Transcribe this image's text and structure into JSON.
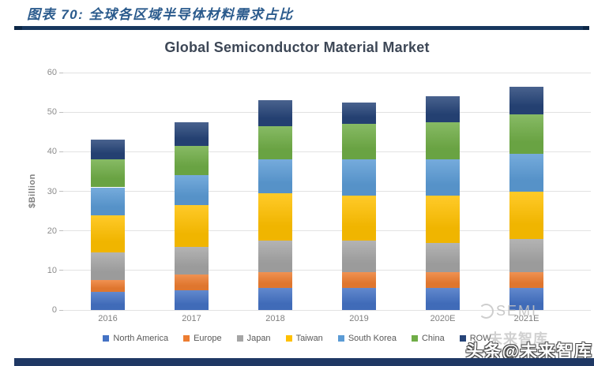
{
  "header": {
    "caption": "图表 70:  全球各区域半导体材料需求占比"
  },
  "watermarks": {
    "semi": "SEMI",
    "toutiao": "头条@未来智库",
    "toutiao_ghost": "未来智库"
  },
  "colors": {
    "caption_blue": "#2A5A8C",
    "rule_navy": "#17375E",
    "bottom_bar_navy": "#1F3864",
    "gridline": "#E2E2E2",
    "axis_text": "#7F7F7F"
  },
  "chart_data": {
    "type": "bar",
    "stacked": true,
    "title": "Global Semiconductor Material Market",
    "xlabel": "",
    "ylabel": "$Billion",
    "ylim": [
      0,
      60
    ],
    "yticks": [
      0,
      10,
      20,
      30,
      40,
      50,
      60
    ],
    "grid": true,
    "legend_position": "bottom",
    "categories": [
      "2016",
      "2017",
      "2018",
      "2019",
      "2020E",
      "2021E"
    ],
    "series": [
      {
        "name": "North America",
        "color": "#4472C4",
        "values": [
          4.5,
          5.0,
          5.5,
          5.5,
          5.5,
          5.5
        ]
      },
      {
        "name": "Europe",
        "color": "#ED7D31",
        "values": [
          3.0,
          4.0,
          4.0,
          4.0,
          4.0,
          4.0
        ]
      },
      {
        "name": "Japan",
        "color": "#A5A5A5",
        "values": [
          7.0,
          7.0,
          8.0,
          8.0,
          7.5,
          8.5
        ]
      },
      {
        "name": "Taiwan",
        "color": "#FFC000",
        "values": [
          9.5,
          10.5,
          12.0,
          11.5,
          12.0,
          12.0
        ]
      },
      {
        "name": "South Korea",
        "color": "#5B9BD5",
        "values": [
          7.0,
          7.5,
          8.5,
          9.0,
          9.0,
          9.5
        ]
      },
      {
        "name": "China",
        "color": "#70AD47",
        "values": [
          7.0,
          7.5,
          8.5,
          9.0,
          9.5,
          10.0
        ]
      },
      {
        "name": "ROW",
        "color": "#264478",
        "values": [
          5.0,
          6.0,
          6.5,
          5.5,
          6.5,
          7.0
        ]
      }
    ],
    "totals": [
      43.0,
      47.5,
      53.0,
      52.5,
      54.0,
      56.5
    ]
  }
}
